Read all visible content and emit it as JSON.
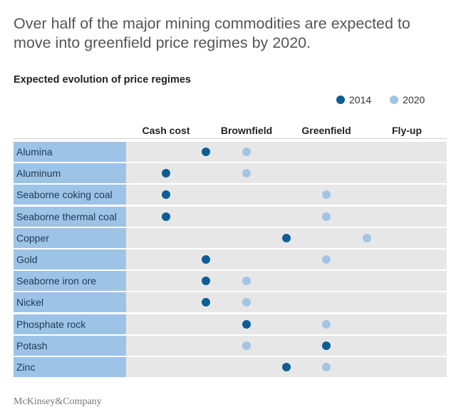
{
  "headline": "Over half of the major mining commodities are expected to move into greenfield price regimes by 2020.",
  "footer": "McKinsey&Company",
  "colors": {
    "y2014": "#0b5f96",
    "y2020": "#a3c4e4",
    "label_bg": "#9dc3e6",
    "band_bg": "#e7e7e7"
  },
  "chart_data": {
    "type": "scatter",
    "title": "Expected evolution of price regimes",
    "categories": [
      "Cash cost",
      "Brownfield",
      "Greenfield",
      "Fly-up"
    ],
    "commodities": [
      "Alumina",
      "Aluminum",
      "Seaborne coking coal",
      "Seaborne thermal coal",
      "Copper",
      "Gold",
      "Seaborne iron ore",
      "Nickel",
      "Phosphate rock",
      "Potash",
      "Zinc"
    ],
    "series": [
      {
        "name": "2014",
        "values": [
          1.5,
          1.0,
          1.0,
          1.0,
          2.5,
          1.5,
          1.5,
          1.5,
          2.0,
          3.0,
          2.5
        ]
      },
      {
        "name": "2020",
        "values": [
          2.0,
          2.0,
          3.0,
          3.0,
          3.5,
          3.0,
          2.0,
          2.0,
          3.0,
          2.0,
          3.0
        ]
      }
    ],
    "legend": "top-right",
    "grid": false
  }
}
